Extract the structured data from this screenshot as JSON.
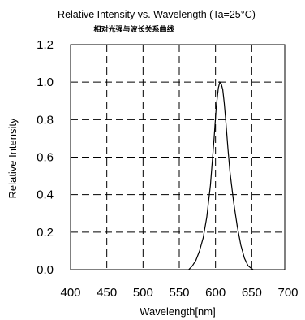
{
  "chart_data": {
    "type": "line",
    "title": "Relative Intensity vs. Wavelength (Ta=25°C)",
    "subtitle": "相对光强与波长关系曲线",
    "xlabel": "Wavelength[nm]",
    "ylabel": "Relative Intensity",
    "xlim": [
      400,
      700
    ],
    "ylim": [
      0,
      1.2
    ],
    "x_ticks": [
      "400",
      "450",
      "500",
      "550",
      "600",
      "650",
      "700"
    ],
    "y_ticks": [
      "0.0",
      "0.2",
      "0.4",
      "0.6",
      "0.8",
      "1.0",
      "1.2"
    ],
    "grid": true,
    "series": [
      {
        "x": [
          563,
          568,
          573,
          578,
          583,
          588,
          593,
          598,
          601,
          604,
          606,
          608,
          610,
          612,
          614,
          617,
          620,
          625,
          630,
          635,
          640,
          645,
          650,
          652
        ],
        "y": [
          0.0,
          0.02,
          0.05,
          0.1,
          0.17,
          0.28,
          0.45,
          0.7,
          0.87,
          0.97,
          1.0,
          0.99,
          0.96,
          0.89,
          0.8,
          0.65,
          0.52,
          0.36,
          0.23,
          0.13,
          0.06,
          0.02,
          0.005,
          0.0
        ]
      }
    ]
  },
  "colors": {
    "line": "#000000",
    "grid": "#000000",
    "frame": "#000000"
  }
}
